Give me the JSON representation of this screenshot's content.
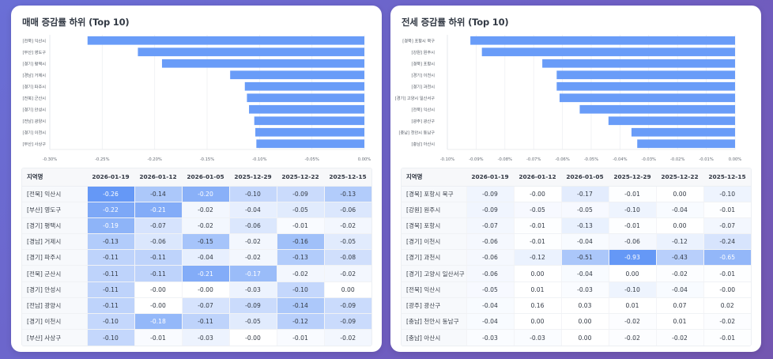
{
  "colors": {
    "bar": "#699cf8",
    "heat_max": "#6598f6",
    "heat_min": "#ffffff",
    "grid": "#eef0f3",
    "axis_text": "#666c75",
    "label_text": "#555b65"
  },
  "table_header_region": "지역명",
  "dates": [
    "2026-01-19",
    "2026-01-12",
    "2026-01-05",
    "2025-12-29",
    "2025-12-22",
    "2025-12-15"
  ],
  "chart_data": [
    {
      "type": "bar",
      "orientation": "horizontal",
      "title": "매매 증감률 하위 (Top 10)",
      "categories": [
        "[전북] 익산시",
        "[부산] 영도구",
        "[경기] 평택시",
        "[경남] 거제시",
        "[경기] 파주시",
        "[전북] 군산시",
        "[경기] 안성시",
        "[전남] 광양시",
        "[경기] 이천시",
        "[부산] 사상구"
      ],
      "values": [
        -0.264,
        -0.216,
        -0.193,
        -0.128,
        -0.114,
        -0.112,
        -0.11,
        -0.105,
        -0.104,
        -0.103
      ],
      "xlim": [
        -0.3,
        0.0
      ],
      "xticks": [
        -0.3,
        -0.25,
        -0.2,
        -0.15,
        -0.1,
        -0.05,
        0.0
      ],
      "xtick_labels": [
        "-0.30%",
        "-0.25%",
        "-0.20%",
        "-0.15%",
        "-0.10%",
        "-0.05%",
        "0.00%"
      ],
      "xlabel": "",
      "ylabel": "",
      "grid": true,
      "legend": "none"
    },
    {
      "type": "bar",
      "orientation": "horizontal",
      "title": "전세 증감률 하위 (Top 10)",
      "categories": [
        "[경북] 포항시 북구",
        "[강원] 원주시",
        "[경북] 포항시",
        "[경기] 이천시",
        "[경기] 과천시",
        "[경기] 고양시 일산서구",
        "[전북] 익산시",
        "[광주] 광산구",
        "[충남] 천안시 동남구",
        "[충남] 아산시"
      ],
      "values": [
        -0.092,
        -0.088,
        -0.067,
        -0.062,
        -0.062,
        -0.061,
        -0.054,
        -0.044,
        -0.036,
        -0.034
      ],
      "xlim": [
        -0.1,
        0.0
      ],
      "xticks": [
        -0.1,
        -0.09,
        -0.08,
        -0.07,
        -0.06,
        -0.05,
        -0.04,
        -0.03,
        -0.02,
        -0.01,
        0.0
      ],
      "xtick_labels": [
        "-0.10%",
        "-0.09%",
        "-0.08%",
        "-0.07%",
        "-0.06%",
        "-0.05%",
        "-0.04%",
        "-0.03%",
        "-0.02%",
        "-0.01%",
        "0.00%"
      ],
      "xlabel": "",
      "ylabel": "",
      "grid": true,
      "legend": "none"
    },
    {
      "type": "heatmap",
      "title": "매매 증감률 하위 (Top 10) 표",
      "columns": [
        "지역명",
        "2026-01-19",
        "2026-01-12",
        "2026-01-05",
        "2025-12-29",
        "2025-12-22",
        "2025-12-15"
      ],
      "rows": [
        {
          "region": "[전북] 익산시",
          "values": [
            "-0.26",
            "-0.14",
            "-0.20",
            "-0.10",
            "-0.09",
            "-0.13"
          ]
        },
        {
          "region": "[부산] 영도구",
          "values": [
            "-0.22",
            "-0.21",
            "-0.02",
            "-0.04",
            "-0.05",
            "-0.06"
          ]
        },
        {
          "region": "[경기] 평택시",
          "values": [
            "-0.19",
            "-0.07",
            "-0.02",
            "-0.06",
            "-0.01",
            "-0.02"
          ]
        },
        {
          "region": "[경남] 거제시",
          "values": [
            "-0.13",
            "-0.06",
            "-0.15",
            "-0.02",
            "-0.16",
            "-0.05"
          ]
        },
        {
          "region": "[경기] 파주시",
          "values": [
            "-0.11",
            "-0.11",
            "-0.04",
            "-0.02",
            "-0.13",
            "-0.08"
          ]
        },
        {
          "region": "[전북] 군산시",
          "values": [
            "-0.11",
            "-0.11",
            "-0.21",
            "-0.17",
            "-0.02",
            "-0.02"
          ]
        },
        {
          "region": "[경기] 안성시",
          "values": [
            "-0.11",
            "-0.00",
            "-0.00",
            "-0.03",
            "-0.10",
            "0.00"
          ]
        },
        {
          "region": "[전남] 광양시",
          "values": [
            "-0.11",
            "-0.00",
            "-0.07",
            "-0.09",
            "-0.14",
            "-0.09"
          ]
        },
        {
          "region": "[경기] 이천시",
          "values": [
            "-0.10",
            "-0.18",
            "-0.11",
            "-0.05",
            "-0.12",
            "-0.09"
          ]
        },
        {
          "region": "[부산] 사상구",
          "values": [
            "-0.10",
            "-0.01",
            "-0.03",
            "-0.00",
            "-0.01",
            "-0.02"
          ]
        }
      ]
    },
    {
      "type": "heatmap",
      "title": "전세 증감률 하위 (Top 10) 표",
      "columns": [
        "지역명",
        "2026-01-19",
        "2026-01-12",
        "2026-01-05",
        "2025-12-29",
        "2025-12-22",
        "2025-12-15"
      ],
      "rows": [
        {
          "region": "[경북] 포항시 북구",
          "values": [
            "-0.09",
            "-0.00",
            "-0.17",
            "-0.01",
            "0.00",
            "-0.10"
          ]
        },
        {
          "region": "[강원] 원주시",
          "values": [
            "-0.09",
            "-0.05",
            "-0.05",
            "-0.10",
            "-0.04",
            "-0.01"
          ]
        },
        {
          "region": "[경북] 포항시",
          "values": [
            "-0.07",
            "-0.01",
            "-0.13",
            "-0.01",
            "0.00",
            "-0.07"
          ]
        },
        {
          "region": "[경기] 이천시",
          "values": [
            "-0.06",
            "-0.01",
            "-0.04",
            "-0.06",
            "-0.12",
            "-0.24"
          ]
        },
        {
          "region": "[경기] 과천시",
          "values": [
            "-0.06",
            "-0.12",
            "-0.51",
            "-0.93",
            "-0.43",
            "-0.65"
          ]
        },
        {
          "region": "[경기] 고양시 일산서구",
          "values": [
            "-0.06",
            "0.00",
            "-0.04",
            "0.00",
            "-0.02",
            "-0.01"
          ]
        },
        {
          "region": "[전북] 익산시",
          "values": [
            "-0.05",
            "0.01",
            "-0.03",
            "-0.10",
            "-0.04",
            "-0.00"
          ]
        },
        {
          "region": "[광주] 광산구",
          "values": [
            "-0.04",
            "0.16",
            "0.03",
            "0.01",
            "0.07",
            "0.02"
          ]
        },
        {
          "region": "[충남] 천안시 동남구",
          "values": [
            "-0.04",
            "0.00",
            "0.00",
            "-0.02",
            "0.01",
            "-0.02"
          ]
        },
        {
          "region": "[충남] 아산시",
          "values": [
            "-0.03",
            "-0.03",
            "0.00",
            "-0.02",
            "-0.02",
            "-0.01"
          ]
        }
      ]
    }
  ]
}
